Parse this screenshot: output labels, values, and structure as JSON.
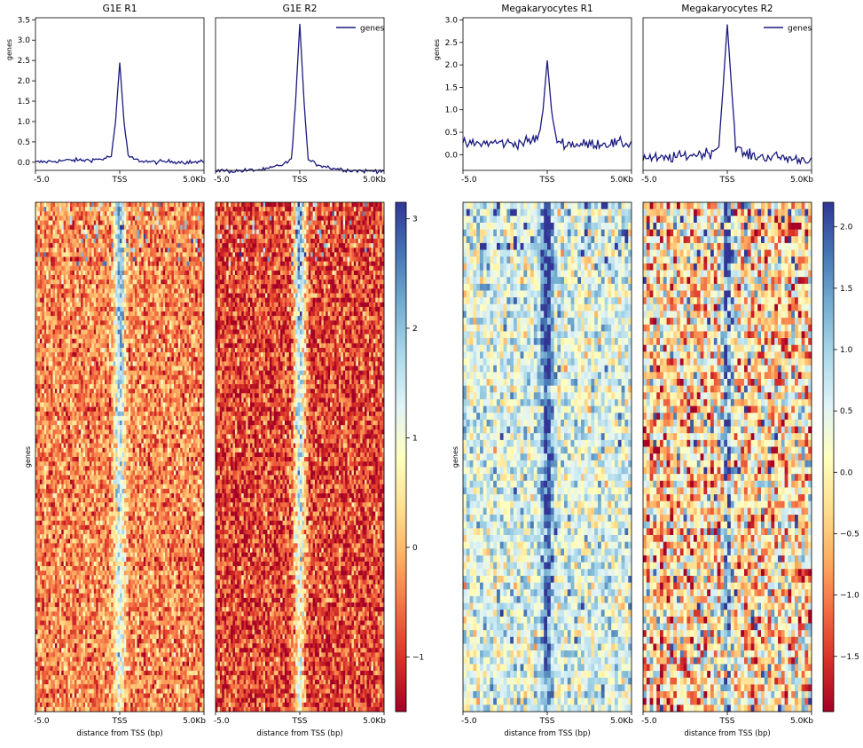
{
  "profile_legend_label": "genes",
  "y_label": "genes",
  "x_axis_label": "distance from TSS (bp)",
  "x_ticks": [
    "-5.0",
    "TSS",
    "5.0Kb"
  ],
  "colors": {
    "profile_line": "#1a1a80",
    "heatmap_colormap": "RdYlBu"
  },
  "colormap_stops": [
    "#a50026",
    "#d73027",
    "#f46d43",
    "#fdae61",
    "#fee090",
    "#ffffbf",
    "#e0f3f8",
    "#abd9e9",
    "#74add1",
    "#4575b4",
    "#313695"
  ],
  "chart_data": [
    {
      "type": "line",
      "group": "G1E",
      "title": "G1E R1",
      "x": [
        -5000,
        -4000,
        -3000,
        -2000,
        -1000,
        -500,
        -250,
        0,
        250,
        500,
        1000,
        2000,
        3000,
        4000,
        5000
      ],
      "series": [
        {
          "name": "genes",
          "values": [
            0.0,
            0.02,
            0.05,
            0.05,
            0.08,
            0.15,
            1.0,
            2.45,
            1.0,
            0.15,
            0.05,
            0.0,
            0.02,
            0.0,
            0.0
          ]
        }
      ],
      "ylim": [
        -0.2,
        3.55
      ],
      "yticks": [
        "0.0",
        "0.5",
        "1.0",
        "1.5",
        "2.0",
        "2.5",
        "3.0",
        "3.5"
      ]
    },
    {
      "type": "line",
      "group": "G1E",
      "title": "G1E R2",
      "legend": "top-right",
      "x": [
        -5000,
        -4000,
        -3000,
        -2000,
        -1000,
        -500,
        -250,
        0,
        250,
        500,
        1000,
        2000,
        3000,
        4000,
        5000
      ],
      "series": [
        {
          "name": "genes",
          "values": [
            -0.2,
            -0.22,
            -0.2,
            -0.18,
            -0.05,
            0.05,
            1.5,
            3.4,
            1.5,
            0.05,
            -0.05,
            -0.15,
            -0.2,
            -0.22,
            -0.2
          ]
        }
      ]
    },
    {
      "type": "line",
      "group": "Megakaryocytes",
      "title": "Megakaryocytes R1",
      "x": [
        -5000,
        -4000,
        -3000,
        -2000,
        -1000,
        -500,
        -250,
        0,
        250,
        500,
        1000,
        2000,
        3000,
        4000,
        5000
      ],
      "series": [
        {
          "name": "genes",
          "values": [
            0.22,
            0.25,
            0.27,
            0.25,
            0.3,
            0.4,
            1.0,
            2.1,
            1.0,
            0.35,
            0.25,
            0.22,
            0.25,
            0.25,
            0.25
          ]
        }
      ],
      "ylim": [
        -0.35,
        3.05
      ],
      "yticks": [
        "0.0",
        "0.5",
        "1.0",
        "1.5",
        "2.0",
        "2.5",
        "3.0"
      ]
    },
    {
      "type": "line",
      "group": "Megakaryocytes",
      "title": "Megakaryocytes R2",
      "legend": "top-right",
      "x": [
        -5000,
        -4000,
        -3000,
        -2000,
        -1000,
        -500,
        -250,
        0,
        250,
        500,
        1000,
        2000,
        3000,
        4000,
        5000
      ],
      "series": [
        {
          "name": "genes",
          "values": [
            -0.05,
            -0.1,
            -0.05,
            0.0,
            0.05,
            0.2,
            1.5,
            2.9,
            1.5,
            0.2,
            0.0,
            -0.05,
            -0.05,
            -0.1,
            -0.1
          ]
        }
      ]
    },
    {
      "type": "heatmap",
      "group": "G1E",
      "samples": [
        "G1E R1",
        "G1E R2"
      ],
      "colorbar": {
        "range": [
          -1.5,
          3.15
        ],
        "ticks": [
          "−1",
          "0",
          "1",
          "2",
          "3"
        ]
      }
    },
    {
      "type": "heatmap",
      "group": "Megakaryocytes",
      "samples": [
        "Megakaryocytes R1",
        "Megakaryocytes R2"
      ],
      "colorbar": {
        "range": [
          -1.95,
          2.2
        ],
        "ticks": [
          "−1.5",
          "−1.0",
          "−0.5",
          "0.0",
          "0.5",
          "1.0",
          "1.5",
          "2.0"
        ]
      }
    }
  ]
}
